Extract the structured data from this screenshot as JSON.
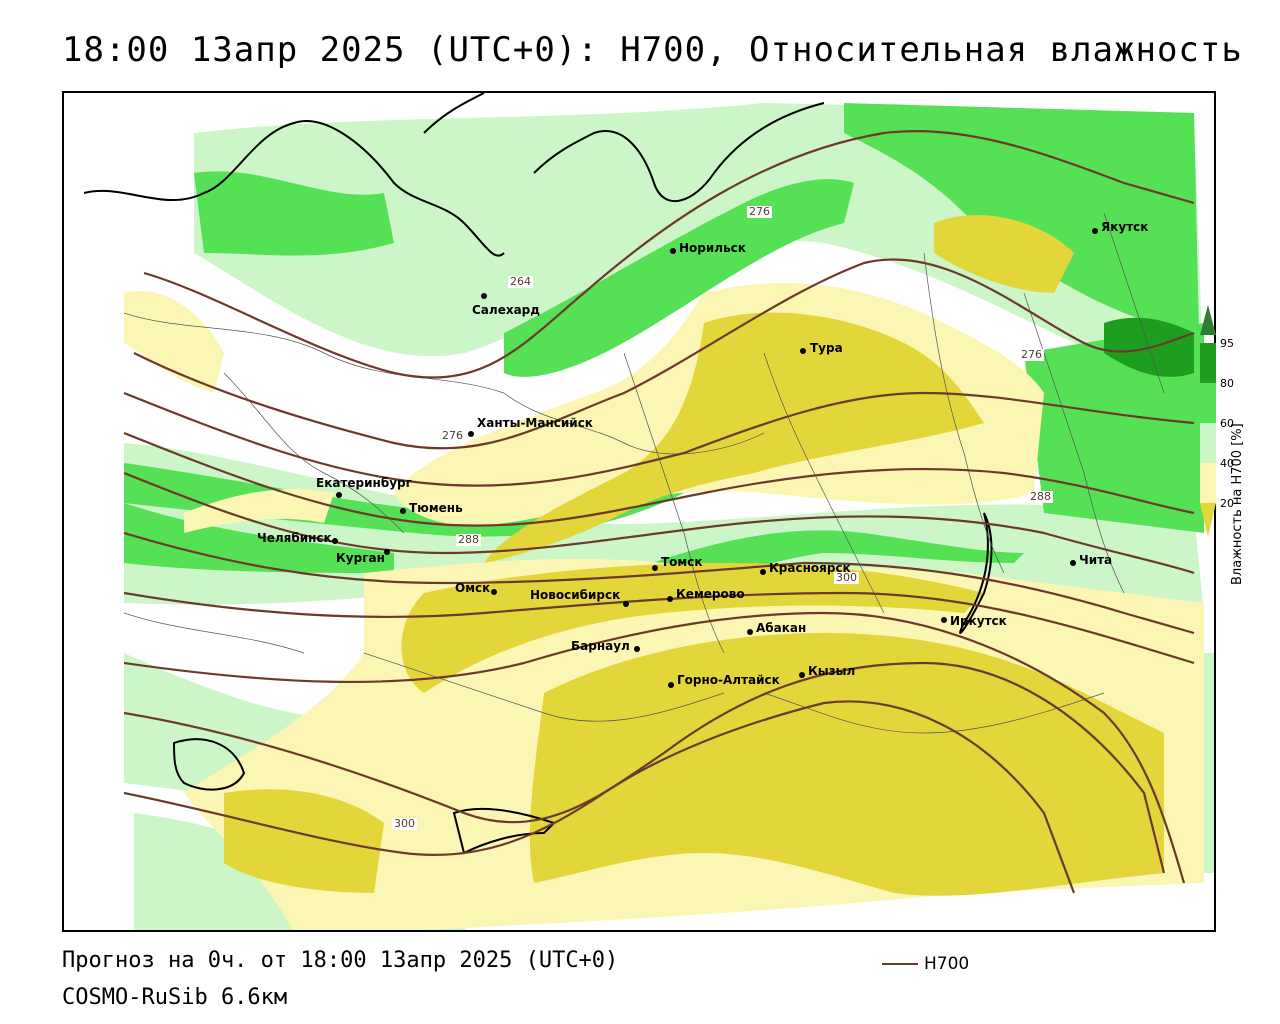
{
  "title": "18:00 13апр 2025 (UTC+0): H700, Относительная влажность",
  "footer": {
    "forecast": "Прогноз на 0ч. от 18:00 13апр 2025 (UTC+0)",
    "model": "COSMO-RuSib 6.6км",
    "isoline_key": "H700"
  },
  "legend": {
    "unit_label": "Влажность на H700 [%]",
    "ticks": [
      "95",
      "80",
      "60",
      "40",
      "20"
    ],
    "colors": {
      "rh95": "#2e7d32",
      "rh80": "#1e9e1e",
      "rh60": "#55e055",
      "rh40": "#ccf5c8",
      "rh20": "#fbf6b4",
      "dry": "#e3d63a"
    }
  },
  "cities": [
    {
      "name": "Якутск"
    },
    {
      "name": "Норильск"
    },
    {
      "name": "Салехард"
    },
    {
      "name": "Тура"
    },
    {
      "name": "Ханты-Мансийск"
    },
    {
      "name": "Екатеринбург"
    },
    {
      "name": "Тюмень"
    },
    {
      "name": "Челябинск"
    },
    {
      "name": "Курган"
    },
    {
      "name": "Омск"
    },
    {
      "name": "Новосибирск"
    },
    {
      "name": "Томск"
    },
    {
      "name": "Кемерово"
    },
    {
      "name": "Красноярск"
    },
    {
      "name": "Барнаул"
    },
    {
      "name": "Абакан"
    },
    {
      "name": "Горно-Алтайск"
    },
    {
      "name": "Кызыл"
    },
    {
      "name": "Иркутск"
    },
    {
      "name": "Чита"
    }
  ],
  "isolines": [
    "264",
    "276",
    "276",
    "276",
    "288",
    "288",
    "300",
    "300"
  ]
}
